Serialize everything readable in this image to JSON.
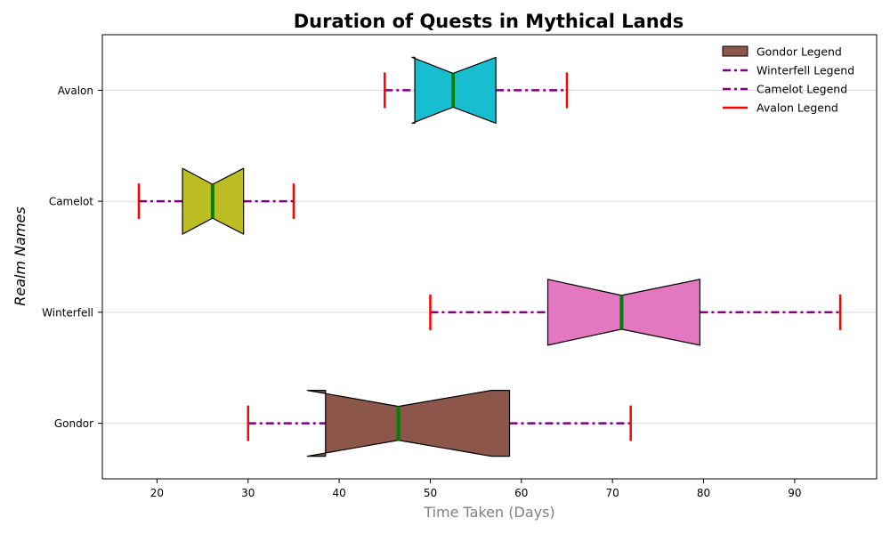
{
  "chart_data": {
    "type": "box",
    "orientation": "horizontal",
    "title": "Duration of Quests in Mythical Lands",
    "xlabel": "Time Taken (Days)",
    "ylabel": "Realm Names",
    "xlim": [
      14,
      99
    ],
    "xticks": [
      20,
      30,
      40,
      50,
      60,
      70,
      80,
      90
    ],
    "grid": "horizontal",
    "legend_position": "top-right",
    "legend": [
      "Gondor Legend",
      "Winterfell Legend",
      "Camelot Legend",
      "Avalon Legend"
    ],
    "categories": [
      "Gondor",
      "Winterfell",
      "Camelot",
      "Avalon"
    ],
    "boxes": [
      {
        "realm": "Gondor",
        "whisker_low": 30,
        "q1": 38.5,
        "median": 46.5,
        "q3": 58.7,
        "whisker_high": 72,
        "notch_low": 36.5,
        "notch_high": 56.7,
        "color": "#8c564b"
      },
      {
        "realm": "Winterfell",
        "whisker_low": 50,
        "q1": 62.9,
        "median": 71.0,
        "q3": 79.6,
        "whisker_high": 95,
        "notch_low": 62.9,
        "notch_high": 79.6,
        "color": "#e377c2"
      },
      {
        "realm": "Camelot",
        "whisker_low": 18,
        "q1": 22.8,
        "median": 26.1,
        "q3": 29.5,
        "whisker_high": 35,
        "notch_low": 22.8,
        "notch_high": 29.5,
        "color": "#bcbd22"
      },
      {
        "realm": "Avalon",
        "whisker_low": 45,
        "q1": 48.3,
        "median": 52.5,
        "q3": 57.2,
        "whisker_high": 65,
        "notch_low": 48.0,
        "notch_high": 57.2,
        "color": "#17becf"
      }
    ],
    "whisker_color": "#800080",
    "cap_color": "#ff0000",
    "median_color": "#008000"
  }
}
